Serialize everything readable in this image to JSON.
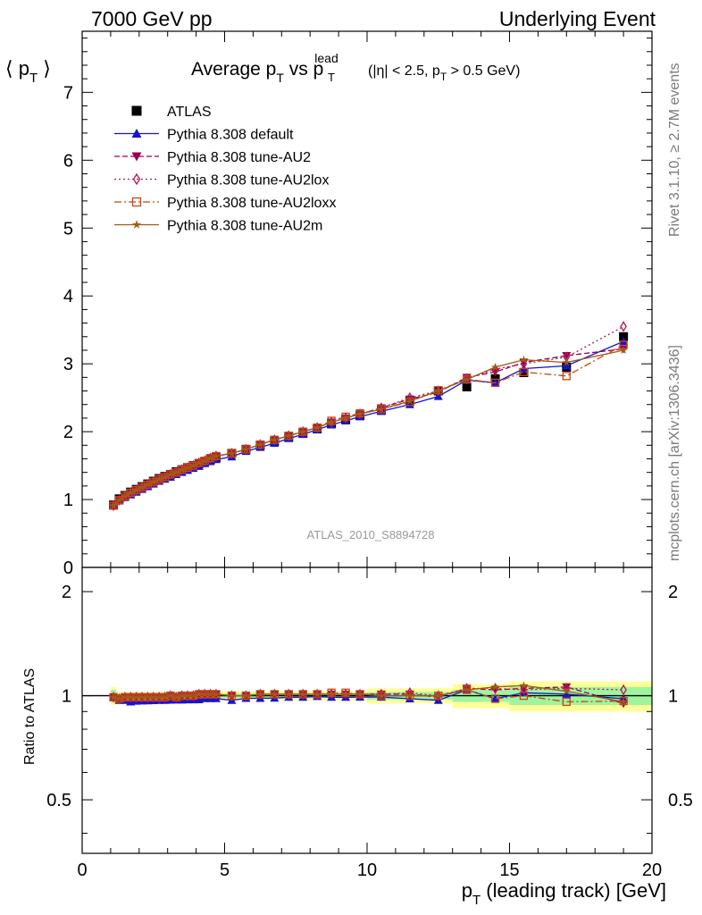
{
  "header": {
    "left": "7000 GeV pp",
    "right": "Underlying Event"
  },
  "side_labels": {
    "rivet": "Rivet 3.1.10, ≥ 2.7M events",
    "mcplots": "mcplots.cern.ch [arXiv:1306.3436]"
  },
  "chart_data": [
    {
      "type": "scatter",
      "panel": "main",
      "title": {
        "main": "Average p",
        "sub_t": "T",
        "vs": " vs p",
        "sup_lead": "lead",
        "cut": " (|η| < 2.5, p",
        "cut_end": " > 0.5 GeV)"
      },
      "ylabel": {
        "left": "⟨ p",
        "sub": "T",
        "right": " ⟩"
      },
      "xlim": [
        0,
        20
      ],
      "ylim": [
        0,
        7.9
      ],
      "xticks": [
        "0",
        "5",
        "10",
        "15",
        "20"
      ],
      "yticks": [
        "0",
        "1",
        "2",
        "3",
        "4",
        "5",
        "6",
        "7"
      ],
      "watermark": "ATLAS_2010_S8894728",
      "legend_position": "top-left",
      "x": [
        1.1,
        1.3,
        1.5,
        1.7,
        1.9,
        2.1,
        2.3,
        2.5,
        2.7,
        2.9,
        3.1,
        3.3,
        3.5,
        3.7,
        3.9,
        4.1,
        4.3,
        4.5,
        4.7,
        5.25,
        5.75,
        6.25,
        6.75,
        7.25,
        7.75,
        8.25,
        8.75,
        9.25,
        9.75,
        10.5,
        11.5,
        12.5,
        13.5,
        14.5,
        15.5,
        17.0,
        19.0
      ],
      "series": [
        {
          "name": "ATLAS",
          "color": "#000000",
          "marker": "square-filled",
          "line": "none",
          "values": [
            0.92,
            1.01,
            1.06,
            1.11,
            1.15,
            1.19,
            1.23,
            1.27,
            1.31,
            1.34,
            1.37,
            1.41,
            1.44,
            1.47,
            1.5,
            1.53,
            1.56,
            1.59,
            1.62,
            1.68,
            1.74,
            1.8,
            1.86,
            1.92,
            1.98,
            2.04,
            2.12,
            2.18,
            2.24,
            2.32,
            2.45,
            2.6,
            2.66,
            2.78,
            2.87,
            2.95,
            3.4
          ]
        },
        {
          "name": "Pythia 8.308 default",
          "color": "#1414d2",
          "marker": "triangle-up-filled",
          "line": "solid",
          "values": [
            0.91,
            0.98,
            1.03,
            1.07,
            1.11,
            1.15,
            1.19,
            1.23,
            1.27,
            1.3,
            1.33,
            1.37,
            1.4,
            1.43,
            1.46,
            1.49,
            1.53,
            1.56,
            1.59,
            1.63,
            1.71,
            1.77,
            1.83,
            1.9,
            1.96,
            2.03,
            2.1,
            2.16,
            2.22,
            2.3,
            2.4,
            2.52,
            2.76,
            2.72,
            2.93,
            2.97,
            3.33
          ]
        },
        {
          "name": "Pythia 8.308 tune-AU2",
          "color": "#960050",
          "marker": "triangle-down-filled",
          "line": "dashed",
          "values": [
            0.91,
            0.99,
            1.05,
            1.1,
            1.14,
            1.18,
            1.22,
            1.26,
            1.3,
            1.33,
            1.37,
            1.4,
            1.44,
            1.47,
            1.5,
            1.54,
            1.57,
            1.6,
            1.64,
            1.68,
            1.74,
            1.81,
            1.88,
            1.94,
            2.0,
            2.06,
            2.14,
            2.2,
            2.26,
            2.35,
            2.48,
            2.58,
            2.8,
            2.88,
            3.02,
            3.12,
            3.22
          ]
        },
        {
          "name": "Pythia 8.308 tune-AU2lox",
          "color": "#b4145a",
          "marker": "diamond-open",
          "line": "dotted",
          "values": [
            0.91,
            0.99,
            1.05,
            1.1,
            1.14,
            1.18,
            1.22,
            1.26,
            1.3,
            1.33,
            1.37,
            1.4,
            1.44,
            1.47,
            1.5,
            1.54,
            1.57,
            1.61,
            1.64,
            1.68,
            1.74,
            1.81,
            1.88,
            1.94,
            2.0,
            2.06,
            2.14,
            2.2,
            2.26,
            2.35,
            2.5,
            2.6,
            2.78,
            2.92,
            3.0,
            3.1,
            3.55
          ]
        },
        {
          "name": "Pythia 8.308 tune-AU2loxx",
          "color": "#c84614",
          "marker": "square-open",
          "line": "dashdot",
          "values": [
            0.91,
            0.99,
            1.05,
            1.1,
            1.14,
            1.18,
            1.22,
            1.26,
            1.3,
            1.33,
            1.37,
            1.4,
            1.44,
            1.47,
            1.5,
            1.54,
            1.57,
            1.61,
            1.64,
            1.68,
            1.74,
            1.81,
            1.88,
            1.94,
            2.0,
            2.06,
            2.16,
            2.22,
            2.27,
            2.33,
            2.44,
            2.61,
            2.77,
            2.72,
            2.88,
            2.82,
            3.28
          ]
        },
        {
          "name": "Pythia 8.308 tune-AU2m",
          "color": "#a05a14",
          "marker": "star-filled",
          "line": "solid",
          "values": [
            0.91,
            0.99,
            1.05,
            1.1,
            1.14,
            1.18,
            1.22,
            1.26,
            1.3,
            1.33,
            1.37,
            1.4,
            1.44,
            1.47,
            1.5,
            1.54,
            1.57,
            1.61,
            1.64,
            1.68,
            1.74,
            1.81,
            1.88,
            1.94,
            2.0,
            2.06,
            2.14,
            2.2,
            2.26,
            2.33,
            2.45,
            2.6,
            2.77,
            2.95,
            3.06,
            3.02,
            3.2
          ]
        }
      ]
    },
    {
      "type": "line",
      "panel": "ratio",
      "ylabel": "Ratio to ATLAS",
      "xlabel": {
        "p": "p",
        "sub": "T",
        "rest": " (leading track) [GeV]"
      },
      "xlim": [
        0,
        20
      ],
      "ylim": [
        0.35,
        2.35
      ],
      "yscale": "log",
      "yticks": [
        "0.5",
        "1",
        "2"
      ],
      "xticks": [
        "0",
        "5",
        "10",
        "15",
        "20"
      ],
      "reference": 1,
      "band_colors": {
        "inner": "#9ef59e",
        "outer": "#ffff99"
      },
      "uncertainty_bins": [
        {
          "x": [
            1.0,
            1.2
          ],
          "inner": 0.04,
          "outer": 0.06
        },
        {
          "x": [
            1.2,
            4.8
          ],
          "inner": 0.01,
          "outer": 0.025
        },
        {
          "x": [
            4.8,
            10.0
          ],
          "inner": 0.015,
          "outer": 0.03
        },
        {
          "x": [
            10.0,
            13.0
          ],
          "inner": 0.025,
          "outer": 0.05
        },
        {
          "x": [
            13.0,
            15.0
          ],
          "inner": 0.04,
          "outer": 0.08
        },
        {
          "x": [
            15.0,
            18.0
          ],
          "inner": 0.06,
          "outer": 0.1
        },
        {
          "x": [
            18.0,
            20.0
          ],
          "inner": 0.06,
          "outer": 0.1
        }
      ],
      "series": [
        {
          "name": "Pythia 8.308 default",
          "values": [
            0.99,
            0.97,
            0.97,
            0.96,
            0.965,
            0.966,
            0.967,
            0.968,
            0.97,
            0.97,
            0.971,
            0.972,
            0.972,
            0.973,
            0.973,
            0.974,
            0.981,
            0.981,
            0.981,
            0.97,
            0.983,
            0.983,
            0.984,
            0.99,
            0.99,
            0.995,
            0.99,
            0.99,
            0.991,
            0.991,
            0.98,
            0.97,
            1.04,
            0.98,
            1.02,
            1.01,
            0.98
          ]
        },
        {
          "name": "Pythia 8.308 tune-AU2",
          "values": [
            0.99,
            0.98,
            0.99,
            0.99,
            0.99,
            0.99,
            0.99,
            0.99,
            0.99,
            0.99,
            1.0,
            0.99,
            1.0,
            1.0,
            1.0,
            1.01,
            1.01,
            1.01,
            1.01,
            1.0,
            1.0,
            1.01,
            1.01,
            1.01,
            1.01,
            1.01,
            1.01,
            1.01,
            1.01,
            1.01,
            1.01,
            0.99,
            1.05,
            1.04,
            1.05,
            1.06,
            0.95
          ]
        },
        {
          "name": "Pythia 8.308 tune-AU2lox",
          "values": [
            0.99,
            0.98,
            0.99,
            0.99,
            0.99,
            0.99,
            0.99,
            0.99,
            0.99,
            0.99,
            1.0,
            0.99,
            1.0,
            1.0,
            1.0,
            1.01,
            1.01,
            1.01,
            1.01,
            1.0,
            1.0,
            1.01,
            1.01,
            1.01,
            1.01,
            1.01,
            1.01,
            1.01,
            1.01,
            1.01,
            1.02,
            1.0,
            1.05,
            1.05,
            1.04,
            1.05,
            1.04
          ]
        },
        {
          "name": "Pythia 8.308 tune-AU2loxx",
          "values": [
            0.99,
            0.98,
            0.99,
            0.99,
            0.99,
            0.99,
            0.99,
            0.99,
            0.99,
            0.99,
            1.0,
            0.99,
            1.0,
            1.0,
            1.0,
            1.01,
            1.01,
            1.01,
            1.01,
            1.0,
            1.0,
            1.01,
            1.01,
            1.01,
            1.01,
            1.01,
            1.02,
            1.02,
            1.01,
            1.0,
            1.0,
            1.0,
            1.04,
            0.98,
            1.0,
            0.96,
            0.965
          ]
        },
        {
          "name": "Pythia 8.308 tune-AU2m",
          "values": [
            0.99,
            0.98,
            0.99,
            0.99,
            0.99,
            0.99,
            0.99,
            0.99,
            0.99,
            0.99,
            1.0,
            0.99,
            1.0,
            1.0,
            1.0,
            1.01,
            1.01,
            1.01,
            1.01,
            1.0,
            1.0,
            1.01,
            1.01,
            1.01,
            1.01,
            1.01,
            1.01,
            1.01,
            1.01,
            1.0,
            1.0,
            1.0,
            1.04,
            1.06,
            1.07,
            1.03,
            0.96
          ]
        }
      ]
    }
  ]
}
